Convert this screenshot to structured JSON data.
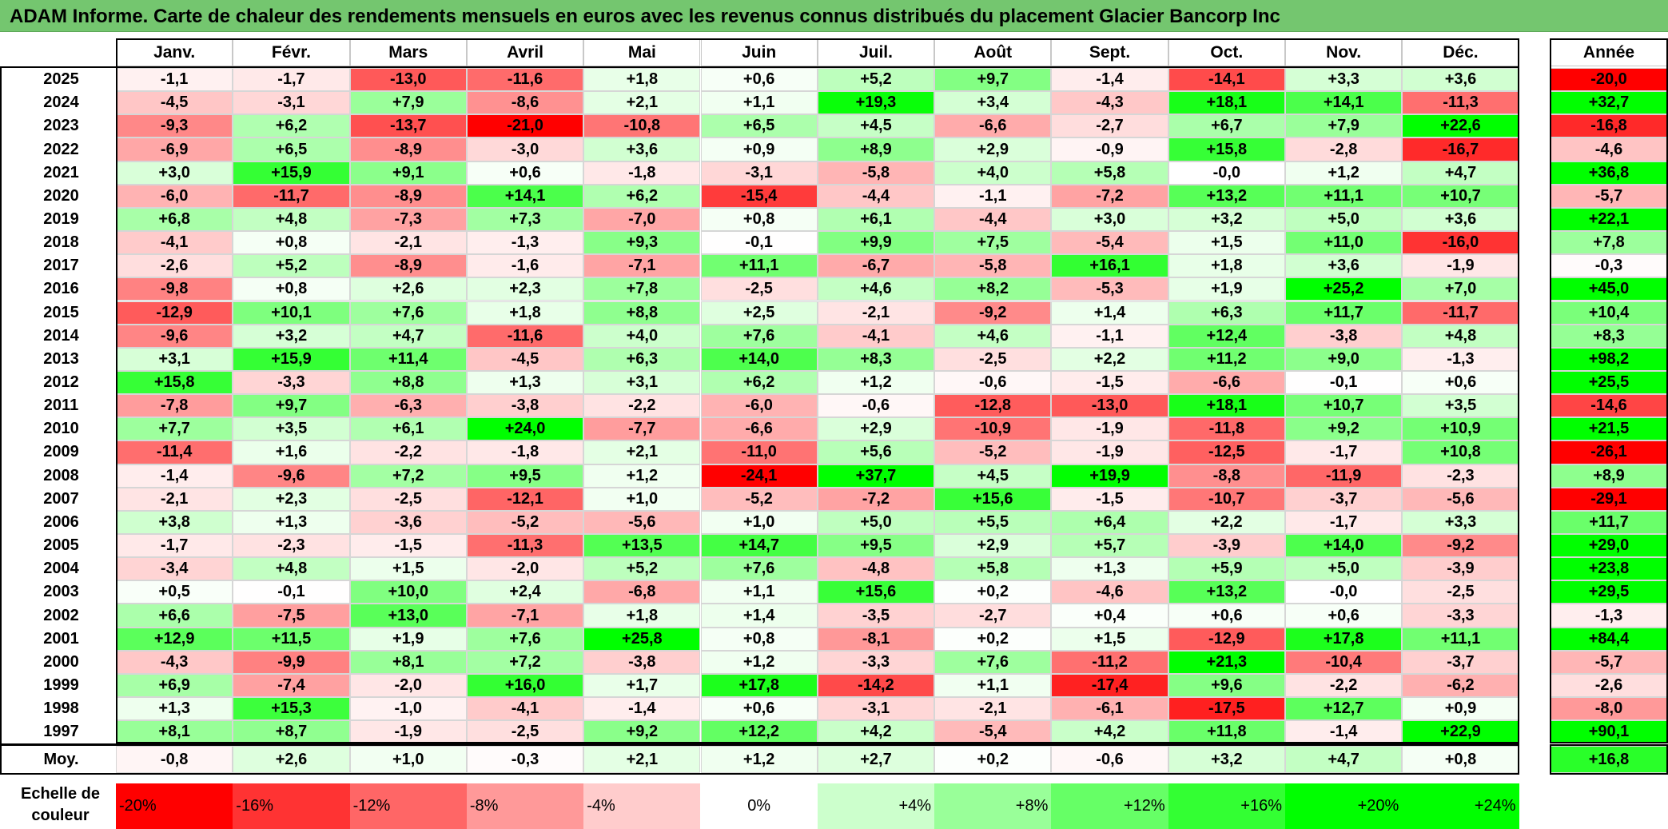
{
  "title": "ADAM Informe. Carte de chaleur des rendements mensuels en euros avec les revenus connus distribués du placement Glacier Bancorp Inc",
  "colors": {
    "title_bg": "#74c66f",
    "positive_max": "#00ff00",
    "negative_max": "#ff0000",
    "neutral": "#ffffff"
  },
  "chart_data": {
    "type": "heatmap",
    "title": "ADAM Informe. Carte de chaleur des rendements mensuels en euros avec les revenus connus distribués du placement Glacier Bancorp Inc",
    "unit": "%",
    "months": [
      "Janv.",
      "Févr.",
      "Mars",
      "Avril",
      "Mai",
      "Juin",
      "Juil.",
      "Août",
      "Sept.",
      "Oct.",
      "Nov.",
      "Déc."
    ],
    "year_header": "Année",
    "average_label": "Moy.",
    "rows": [
      {
        "year": "2025",
        "values": [
          "-1,1",
          "-1,7",
          "-13,0",
          "-11,6",
          "+1,8",
          "+0,6",
          "+5,2",
          "+9,7",
          "-1,4",
          "-14,1",
          "+3,3",
          "+3,6"
        ],
        "annual": "-20,0"
      },
      {
        "year": "2024",
        "values": [
          "-4,5",
          "-3,1",
          "+7,9",
          "-8,6",
          "+2,1",
          "+1,1",
          "+19,3",
          "+3,4",
          "-4,3",
          "+18,1",
          "+14,1",
          "-11,3"
        ],
        "annual": "+32,7"
      },
      {
        "year": "2023",
        "values": [
          "-9,3",
          "+6,2",
          "-13,7",
          "-21,0",
          "-10,8",
          "+6,5",
          "+4,5",
          "-6,6",
          "-2,7",
          "+6,7",
          "+7,9",
          "+22,6"
        ],
        "annual": "-16,8"
      },
      {
        "year": "2022",
        "values": [
          "-6,9",
          "+6,5",
          "-8,9",
          "-3,0",
          "+3,6",
          "+0,9",
          "+8,9",
          "+2,9",
          "-0,9",
          "+15,8",
          "-2,8",
          "-16,7"
        ],
        "annual": "-4,6"
      },
      {
        "year": "2021",
        "values": [
          "+3,0",
          "+15,9",
          "+9,1",
          "+0,6",
          "-1,8",
          "-3,1",
          "-5,8",
          "+4,0",
          "+5,8",
          "-0,0",
          "+1,2",
          "+4,7"
        ],
        "annual": "+36,8"
      },
      {
        "year": "2020",
        "values": [
          "-6,0",
          "-11,7",
          "-8,9",
          "+14,1",
          "+6,2",
          "-15,4",
          "-4,4",
          "-1,1",
          "-7,2",
          "+13,2",
          "+11,1",
          "+10,7"
        ],
        "annual": "-5,7"
      },
      {
        "year": "2019",
        "values": [
          "+6,8",
          "+4,8",
          "-7,3",
          "+7,3",
          "-7,0",
          "+0,8",
          "+6,1",
          "-4,4",
          "+3,0",
          "+3,2",
          "+5,0",
          "+3,6"
        ],
        "annual": "+22,1"
      },
      {
        "year": "2018",
        "values": [
          "-4,1",
          "+0,8",
          "-2,1",
          "-1,3",
          "+9,3",
          "-0,1",
          "+9,9",
          "+7,5",
          "-5,4",
          "+1,5",
          "+11,0",
          "-16,0"
        ],
        "annual": "+7,8"
      },
      {
        "year": "2017",
        "values": [
          "-2,6",
          "+5,2",
          "-8,9",
          "-1,6",
          "-7,1",
          "+11,1",
          "-6,7",
          "-5,8",
          "+16,1",
          "+1,8",
          "+3,6",
          "-1,9"
        ],
        "annual": "-0,3"
      },
      {
        "year": "2016",
        "values": [
          "-9,8",
          "+0,8",
          "+2,6",
          "+2,3",
          "+7,8",
          "-2,5",
          "+4,6",
          "+8,2",
          "-5,3",
          "+1,9",
          "+25,2",
          "+7,0"
        ],
        "annual": "+45,0"
      },
      {
        "year": "2015",
        "values": [
          "-12,9",
          "+10,1",
          "+7,6",
          "+1,8",
          "+8,8",
          "+2,5",
          "-2,1",
          "-9,2",
          "+1,4",
          "+6,3",
          "+11,7",
          "-11,7"
        ],
        "annual": "+10,4"
      },
      {
        "year": "2014",
        "values": [
          "-9,6",
          "+3,2",
          "+4,7",
          "-11,6",
          "+4,0",
          "+7,6",
          "-4,1",
          "+4,6",
          "-1,1",
          "+12,4",
          "-3,8",
          "+4,8"
        ],
        "annual": "+8,3"
      },
      {
        "year": "2013",
        "values": [
          "+3,1",
          "+15,9",
          "+11,4",
          "-4,5",
          "+6,3",
          "+14,0",
          "+8,3",
          "-2,5",
          "+2,2",
          "+11,2",
          "+9,0",
          "-1,3"
        ],
        "annual": "+98,2"
      },
      {
        "year": "2012",
        "values": [
          "+15,8",
          "-3,3",
          "+8,8",
          "+1,3",
          "+3,1",
          "+6,2",
          "+1,2",
          "-0,6",
          "-1,5",
          "-6,6",
          "-0,1",
          "+0,6"
        ],
        "annual": "+25,5"
      },
      {
        "year": "2011",
        "values": [
          "-7,8",
          "+9,7",
          "-6,3",
          "-3,8",
          "-2,2",
          "-6,0",
          "-0,6",
          "-12,8",
          "-13,0",
          "+18,1",
          "+10,7",
          "+3,5"
        ],
        "annual": "-14,6"
      },
      {
        "year": "2010",
        "values": [
          "+7,7",
          "+3,5",
          "+6,1",
          "+24,0",
          "-7,7",
          "-6,6",
          "+2,9",
          "-10,9",
          "-1,9",
          "-11,8",
          "+9,2",
          "+10,9"
        ],
        "annual": "+21,5"
      },
      {
        "year": "2009",
        "values": [
          "-11,4",
          "+1,6",
          "-2,2",
          "-1,8",
          "+2,1",
          "-11,0",
          "+5,6",
          "-5,2",
          "-1,9",
          "-12,5",
          "-1,7",
          "+10,8"
        ],
        "annual": "-26,1"
      },
      {
        "year": "2008",
        "values": [
          "-1,4",
          "-9,6",
          "+7,2",
          "+9,5",
          "+1,2",
          "-24,1",
          "+37,7",
          "+4,5",
          "+19,9",
          "-8,8",
          "-11,9",
          "-2,3"
        ],
        "annual": "+8,9"
      },
      {
        "year": "2007",
        "values": [
          "-2,1",
          "+2,3",
          "-2,5",
          "-12,1",
          "+1,0",
          "-5,2",
          "-7,2",
          "+15,6",
          "-1,5",
          "-10,7",
          "-3,7",
          "-5,6"
        ],
        "annual": "-29,1"
      },
      {
        "year": "2006",
        "values": [
          "+3,8",
          "+1,3",
          "-3,6",
          "-5,2",
          "-5,6",
          "+1,0",
          "+5,0",
          "+5,5",
          "+6,4",
          "+2,2",
          "-1,7",
          "+3,3"
        ],
        "annual": "+11,7"
      },
      {
        "year": "2005",
        "values": [
          "-1,7",
          "-2,3",
          "-1,5",
          "-11,3",
          "+13,5",
          "+14,7",
          "+9,5",
          "+2,9",
          "+5,7",
          "-3,9",
          "+14,0",
          "-9,2"
        ],
        "annual": "+29,0"
      },
      {
        "year": "2004",
        "values": [
          "-3,4",
          "+4,8",
          "+1,5",
          "-2,0",
          "+5,2",
          "+7,6",
          "-4,8",
          "+5,8",
          "+1,3",
          "+5,9",
          "+5,0",
          "-3,9"
        ],
        "annual": "+23,8"
      },
      {
        "year": "2003",
        "values": [
          "+0,5",
          "-0,1",
          "+10,0",
          "+2,4",
          "-6,8",
          "+1,1",
          "+15,6",
          "+0,2",
          "-4,6",
          "+13,2",
          "-0,0",
          "-2,5"
        ],
        "annual": "+29,5"
      },
      {
        "year": "2002",
        "values": [
          "+6,6",
          "-7,5",
          "+13,0",
          "-7,1",
          "+1,8",
          "+1,4",
          "-3,5",
          "-2,7",
          "+0,4",
          "+0,6",
          "+0,6",
          "-3,3"
        ],
        "annual": "-1,3"
      },
      {
        "year": "2001",
        "values": [
          "+12,9",
          "+11,5",
          "+1,9",
          "+7,6",
          "+25,8",
          "+0,8",
          "-8,1",
          "+0,2",
          "+1,5",
          "-12,9",
          "+17,8",
          "+11,1"
        ],
        "annual": "+84,4"
      },
      {
        "year": "2000",
        "values": [
          "-4,3",
          "-9,9",
          "+8,1",
          "+7,2",
          "-3,8",
          "+1,2",
          "-3,3",
          "+7,6",
          "-11,2",
          "+21,3",
          "-10,4",
          "-3,7"
        ],
        "annual": "-5,7"
      },
      {
        "year": "1999",
        "values": [
          "+6,9",
          "-7,4",
          "-2,0",
          "+16,0",
          "+1,7",
          "+17,8",
          "-14,2",
          "+1,1",
          "-17,4",
          "+9,6",
          "-2,2",
          "-6,2"
        ],
        "annual": "-2,6"
      },
      {
        "year": "1998",
        "values": [
          "+1,3",
          "+15,3",
          "-1,0",
          "-4,1",
          "-1,4",
          "+0,6",
          "-3,1",
          "-2,1",
          "-6,1",
          "-17,5",
          "+12,7",
          "+0,9"
        ],
        "annual": "-8,0"
      },
      {
        "year": "1997",
        "values": [
          "+8,1",
          "+8,7",
          "-1,9",
          "-2,5",
          "+9,2",
          "+12,2",
          "+4,2",
          "-5,4",
          "+4,2",
          "+11,8",
          "-1,4",
          "+22,9"
        ],
        "annual": "+90,1"
      }
    ],
    "averages": [
      "-0,8",
      "+2,6",
      "+1,0",
      "-0,3",
      "+2,1",
      "+1,2",
      "+2,7",
      "+0,2",
      "-0,6",
      "+3,2",
      "+4,7",
      "+0,8"
    ],
    "average_annual": "+16,8",
    "color_scale": {
      "label": "Echelle de couleur",
      "stops": [
        {
          "label": "-20%",
          "value": -20,
          "color": "#ff0000",
          "align": "left"
        },
        {
          "label": "-16%",
          "value": -16,
          "color": "#ff3333",
          "align": "left"
        },
        {
          "label": "-12%",
          "value": -12,
          "color": "#ff6666",
          "align": "left"
        },
        {
          "label": "-8%",
          "value": -8,
          "color": "#ff9999",
          "align": "left"
        },
        {
          "label": "-4%",
          "value": -4,
          "color": "#ffcccc",
          "align": "left"
        },
        {
          "label": "0%",
          "value": 0,
          "color": "#ffffff",
          "align": "center"
        },
        {
          "label": "+4%",
          "value": 4,
          "color": "#ccffcc",
          "align": "right"
        },
        {
          "label": "+8%",
          "value": 8,
          "color": "#99ff99",
          "align": "right"
        },
        {
          "label": "+12%",
          "value": 12,
          "color": "#66ff66",
          "align": "right"
        },
        {
          "label": "+16%",
          "value": 16,
          "color": "#33ff33",
          "align": "right"
        },
        {
          "label": "+20%",
          "value": 20,
          "color": "#00ff00",
          "align": "right"
        },
        {
          "label": "+24%",
          "value": 24,
          "color": "#00ff00",
          "align": "right"
        }
      ]
    }
  }
}
